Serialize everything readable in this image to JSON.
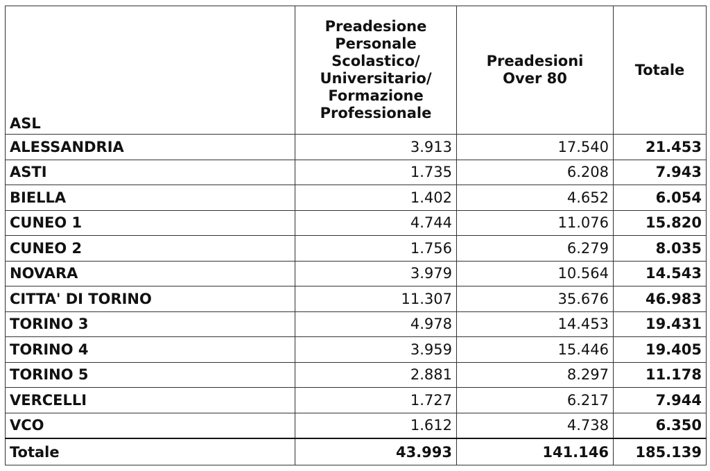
{
  "table": {
    "header": [
      [
        "ASL"
      ],
      [
        "Preadesione",
        "Personale",
        "Scolastico/",
        "Universitario/",
        "Formazione",
        "Professionale"
      ],
      [
        "Preadesioni",
        "Over 80"
      ],
      [
        "Totale"
      ]
    ],
    "rows": [
      [
        "ALESSANDRIA",
        "3.913",
        "17.540",
        "21.453"
      ],
      [
        "ASTI",
        "1.735",
        "6.208",
        "7.943"
      ],
      [
        "BIELLA",
        "1.402",
        "4.652",
        "6.054"
      ],
      [
        "CUNEO 1",
        "4.744",
        "11.076",
        "15.820"
      ],
      [
        "CUNEO 2",
        "1.756",
        "6.279",
        "8.035"
      ],
      [
        "NOVARA",
        "3.979",
        "10.564",
        "14.543"
      ],
      [
        "CITTA' DI TORINO",
        "11.307",
        "35.676",
        "46.983"
      ],
      [
        "TORINO 3",
        "4.978",
        "14.453",
        "19.431"
      ],
      [
        "TORINO 4",
        "3.959",
        "15.446",
        "19.405"
      ],
      [
        "TORINO 5",
        "2.881",
        "8.297",
        "11.178"
      ],
      [
        "VERCELLI",
        "1.727",
        "6.217",
        "7.944"
      ],
      [
        "VCO",
        "1.612",
        "4.738",
        "6.350"
      ]
    ],
    "total": [
      "Totale",
      "43.993",
      "141.146",
      "185.139"
    ]
  }
}
